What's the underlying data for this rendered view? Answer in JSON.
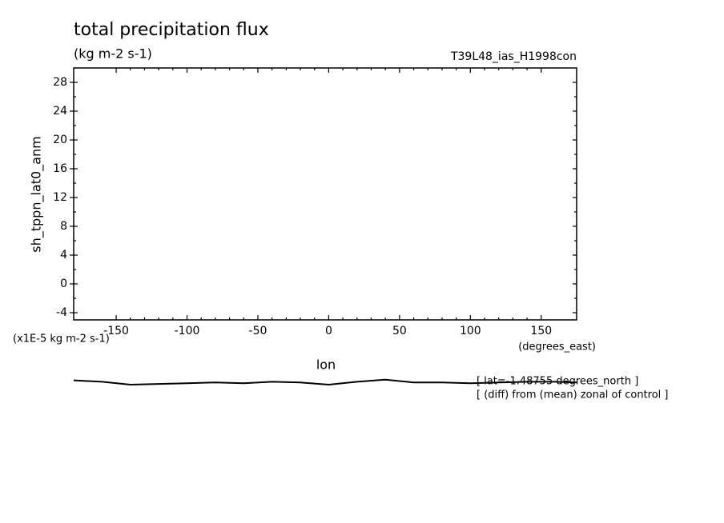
{
  "chart_data": {
    "type": "line",
    "title": "total precipitation flux",
    "subtitle": "(kg m-2 s-1)",
    "run_label": "T39L48_ias_H1998con",
    "y_label": "sh_tppn_lat0_anm",
    "y_units": "(x1E-5 kg m-2 s-1)",
    "x_units": "(degrees_east)",
    "x_label": "lon",
    "annotations": [
      "[ lat=-1.48755 degrees_north ]",
      "[ (diff) from (mean) zonal of control ]"
    ],
    "x": [
      -180,
      -160,
      -140,
      -120,
      -100,
      -80,
      -60,
      -40,
      -20,
      0,
      20,
      40,
      60,
      80,
      100,
      120,
      140,
      160,
      175
    ],
    "series": [
      {
        "color": "#000000",
        "values": [
          -13.4,
          -13.6,
          -14.0,
          -13.9,
          -13.8,
          -13.7,
          -13.8,
          -13.6,
          -13.7,
          -14.0,
          -13.6,
          -13.3,
          -13.7,
          -13.7,
          -13.8,
          -13.7,
          -13.6,
          -13.6,
          -13.7
        ]
      }
    ],
    "xlim": [
      -180,
      175
    ],
    "xticks": [
      -150,
      -100,
      -50,
      0,
      50,
      100,
      150
    ],
    "ylim": [
      -5,
      30
    ],
    "yticks": [
      -4,
      0,
      4,
      8,
      12,
      16,
      20,
      24,
      28
    ]
  }
}
